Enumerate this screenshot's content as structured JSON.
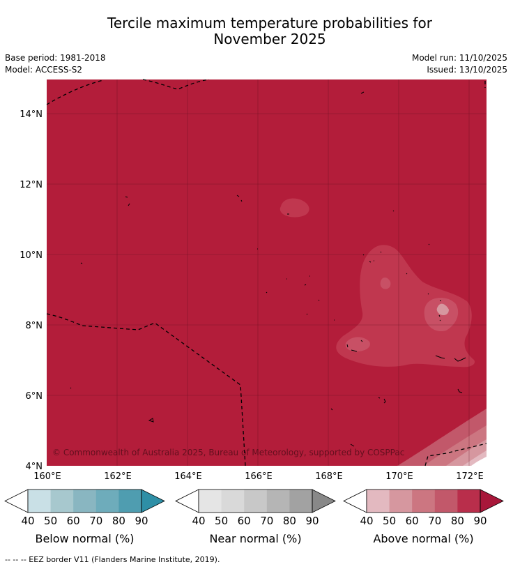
{
  "title_line1": "Tercile maximum temperature probabilities for",
  "title_line2": "November 2025",
  "base_period": "Base period: 1981-2018",
  "model": "Model: ACCESS-S2",
  "model_run": "Model run: 11/10/2025",
  "issued": "Issued: 13/10/2025",
  "copyright": "© Commonwealth of Australia 2025, Bureau of Meteorology, supported by COSPPac",
  "footer": "--  --  -- EEZ border V11 (Flanders Marine Institute, 2019).",
  "map": {
    "lon_labels": [
      "160°E",
      "162°E",
      "164°E",
      "166°E",
      "168°E",
      "170°E",
      "172°E"
    ],
    "lat_labels": [
      "14°N",
      "12°N",
      "10°N",
      "8°N",
      "6°N",
      "4°N"
    ],
    "background_color": "#b31d3a"
  },
  "colorbars": [
    {
      "label": "Below normal (%)",
      "ticks": [
        "40",
        "50",
        "60",
        "70",
        "80",
        "90"
      ],
      "colors": [
        "#ffffff",
        "#c9e0e6",
        "#a7c8ce",
        "#89b6c1",
        "#6eacbb",
        "#4f9db0",
        "#2e8fa6"
      ]
    },
    {
      "label": "Near normal (%)",
      "ticks": [
        "40",
        "50",
        "60",
        "70",
        "80",
        "90"
      ],
      "colors": [
        "#ffffff",
        "#e5e5e5",
        "#d9d9d9",
        "#c8c8c8",
        "#b5b5b5",
        "#a2a2a2",
        "#888888"
      ]
    },
    {
      "label": "Above normal (%)",
      "ticks": [
        "40",
        "50",
        "60",
        "70",
        "80",
        "90"
      ],
      "colors": [
        "#ffffff",
        "#e3b9c0",
        "#d6979f",
        "#cc7681",
        "#c2586a",
        "#b92e4b",
        "#a8173a"
      ]
    }
  ]
}
